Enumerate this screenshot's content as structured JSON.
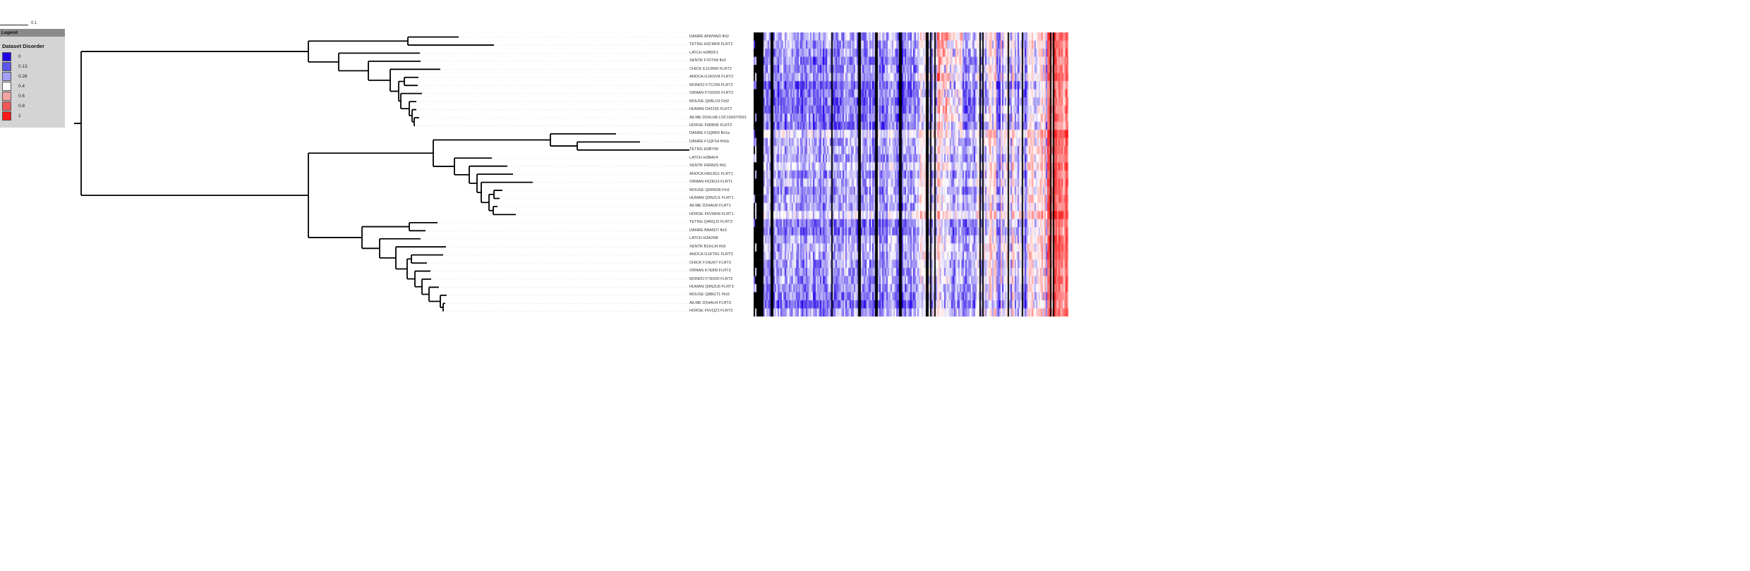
{
  "scale_bar": {
    "label": "0.1"
  },
  "legend": {
    "header": "Legend",
    "title": "Dataset Disorder",
    "items": [
      {
        "label": "0",
        "color": "#1e00e6"
      },
      {
        "label": "0.13",
        "color": "#5e57ef"
      },
      {
        "label": "0.26",
        "color": "#a3a0f5"
      },
      {
        "label": "0.4",
        "color": "#ffffff"
      },
      {
        "label": "0.6",
        "color": "#f5a3a3"
      },
      {
        "label": "0.8",
        "color": "#f25858"
      },
      {
        "label": "1",
        "color": "#ff1a1a"
      }
    ]
  },
  "leaves": [
    "DANRE A5WWE5 flrt2",
    "TETNG H3CMF8 FLRT2",
    "LATCH H3BDF1",
    "XENTR F7D7K8 flrt2",
    "CHICK E1C8W0 FLRT2",
    "ANOCA G1KGV8 FLRT2",
    "MONDO F7CZ99 FLRT2",
    "ORNAN F7DDD5 FLRT2",
    "MOUSE Q6BLU3 Flrt2",
    "HUMAN O43155 FLRT2",
    "AILME D2HLH8 LOC100470591",
    "HORSE F6RB95 FLRT2",
    "DANRE F1QM59 flrt1a",
    "DANRE F1QFS4 flrt1b",
    "TETNG H3BY90",
    "LATCH H3BAV4",
    "XENTR F6RBZ6 flrt1",
    "ANOCA H9G3G1 FLRT1",
    "ORNAN F6ZKU3 FLRT1",
    "MOUSE Q6RKD8 Flrt1",
    "HUMAN Q9NZU1 FLRT1",
    "AILME D2HAU6 FLRT1",
    "HORSE F6VWH9 FLRT1",
    "TETNG Q4RQJ3 FLRT3",
    "DANRE B8A5D7 flrt3",
    "LATCH H3A2N8",
    "XENTR B1H1J4 flrt3",
    "ANOCA G1KTN1 FLRT3",
    "CHICK F1NUK7 FLRT3",
    "ORNAN K7E8I9 FLRT3",
    "MONDO F7E000 FLRT3",
    "HUMAN Q9NZU0 FLRT3",
    "MOUSE Q8BGT1 Flrt3",
    "AILME D2HAU4 FLRT3",
    "HORSE F6VQZ3 FLRT3"
  ],
  "heatmap_colors": {
    "low": "#1e00e6",
    "mid": "#ffffff",
    "high": "#ff1a1a",
    "gap": "#000000"
  }
}
